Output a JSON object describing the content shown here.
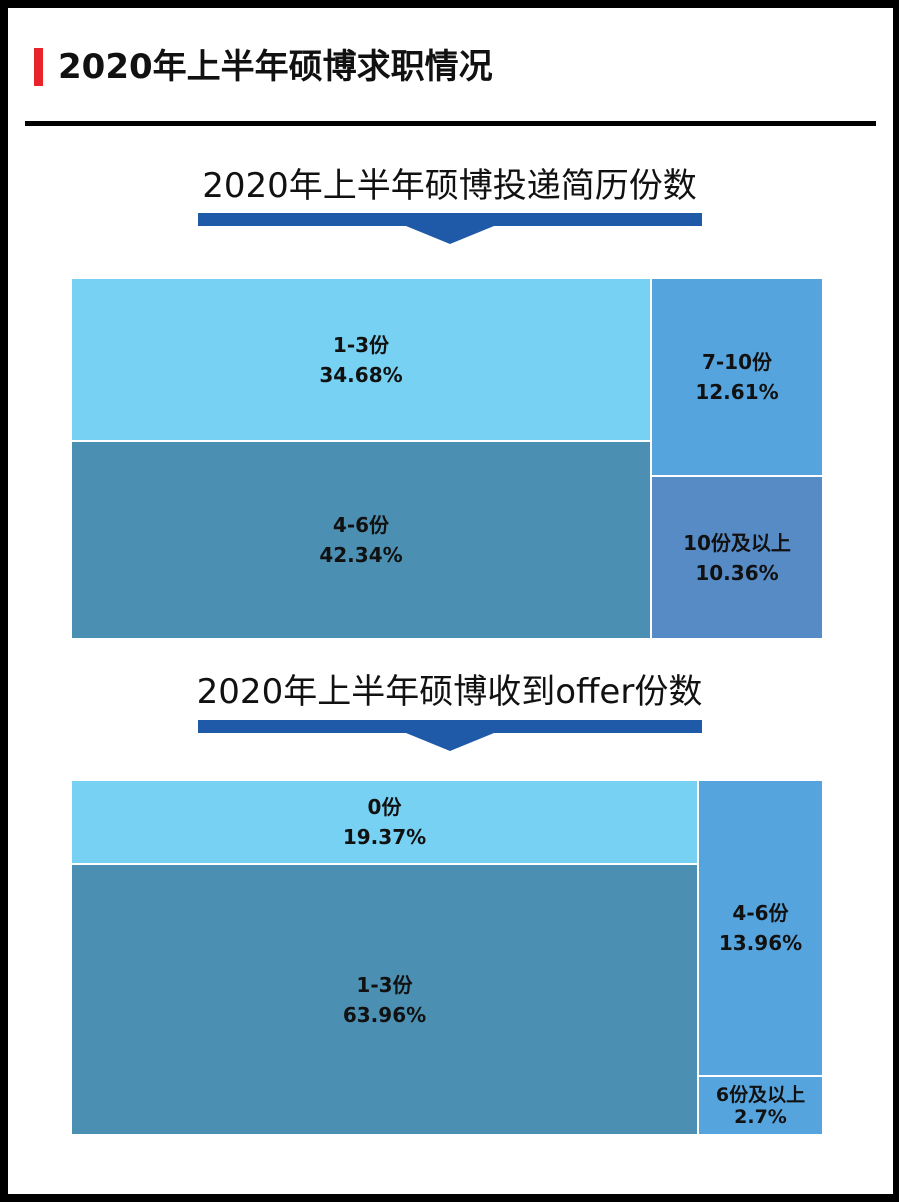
{
  "header": {
    "title": "2020年上半年硕博求职情况",
    "accent_color": "#e8232a"
  },
  "colors": {
    "band": "#1f5aa8",
    "light_blue": "#76d1f2",
    "teal": "#4b8fb2",
    "mid_blue": "#56a4dd",
    "steel_blue": "#568bc6"
  },
  "chart_data": [
    {
      "type": "treemap",
      "title": "2020年上半年硕博投递简历份数",
      "categories": [
        "1-3份",
        "4-6份",
        "7-10份",
        "10份及以上"
      ],
      "values": [
        34.68,
        42.34,
        12.61,
        10.36
      ],
      "value_labels": [
        "34.68%",
        "42.34%",
        "12.61%",
        "10.36%"
      ],
      "colors": [
        "#76d1f2",
        "#4b8fb2",
        "#56a4dd",
        "#568bc6"
      ]
    },
    {
      "type": "treemap",
      "title": "2020年上半年硕博收到offer份数",
      "categories": [
        "0份",
        "1-3份",
        "4-6份",
        "6份及以上"
      ],
      "values": [
        19.37,
        63.96,
        13.96,
        2.7
      ],
      "value_labels": [
        "19.37%",
        "63.96%",
        "13.96%",
        "2.7%"
      ],
      "colors": [
        "#76d1f2",
        "#4b8fb2",
        "#56a4dd",
        "#56a4dd"
      ]
    }
  ]
}
